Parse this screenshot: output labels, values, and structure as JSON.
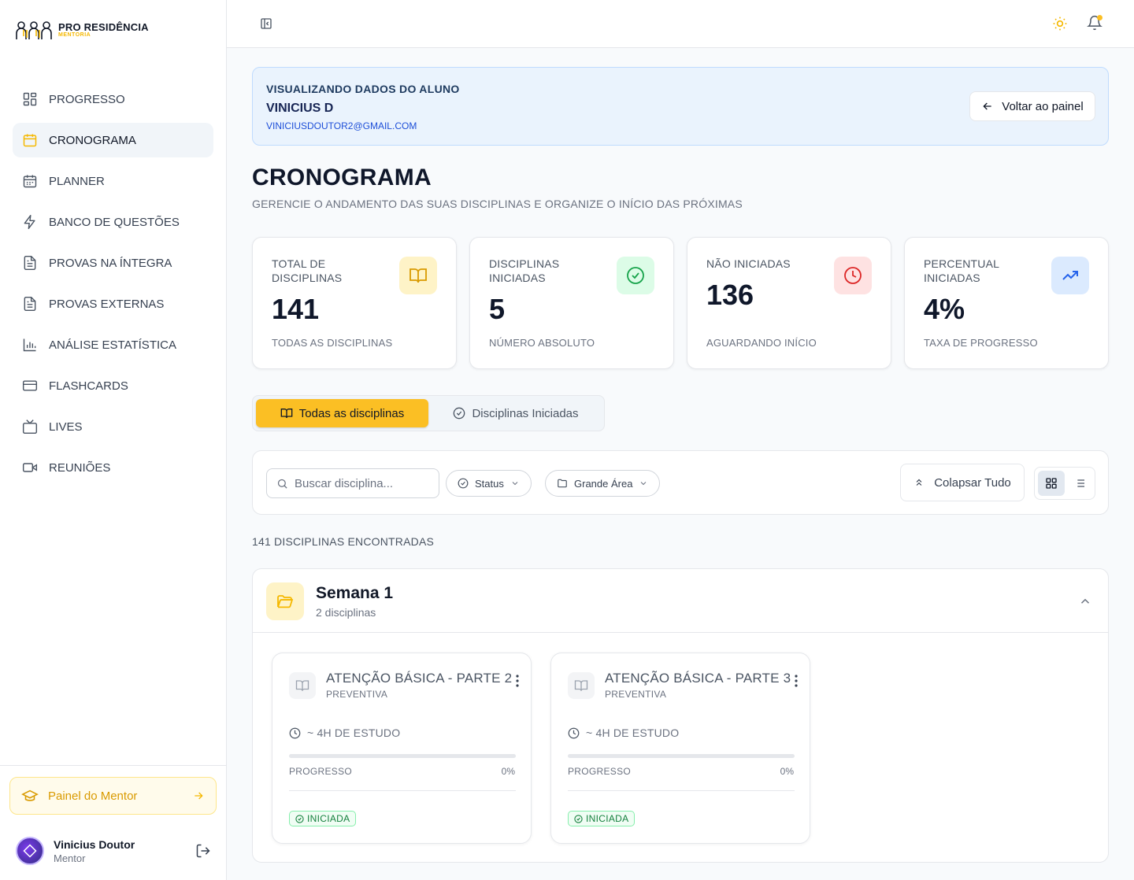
{
  "brand": {
    "name": "PRO RESIDÊNCIA",
    "sub": "MENTORIA"
  },
  "sidebar": {
    "items": [
      {
        "label": "PROGRESSO",
        "icon": "grid-icon"
      },
      {
        "label": "CRONOGRAMA",
        "icon": "calendar-icon",
        "active": true
      },
      {
        "label": "PLANNER",
        "icon": "calendar-grid-icon"
      },
      {
        "label": "BANCO DE QUESTÕES",
        "icon": "bolt-icon"
      },
      {
        "label": "PROVAS NA ÍNTEGRA",
        "icon": "document-icon"
      },
      {
        "label": "PROVAS EXTERNAS",
        "icon": "document-icon"
      },
      {
        "label": "ANÁLISE ESTATÍSTICA",
        "icon": "bar-chart-icon"
      },
      {
        "label": "FLASHCARDS",
        "icon": "card-icon"
      },
      {
        "label": "LIVES",
        "icon": "tv-icon"
      },
      {
        "label": "REUNIÕES",
        "icon": "video-icon"
      }
    ],
    "mentor_button": "Painel do Mentor",
    "user": {
      "name": "Vinicius Doutor",
      "role": "Mentor"
    }
  },
  "banner": {
    "label": "VISUALIZANDO DADOS DO ALUNO",
    "name": "VINICIUS D",
    "email": "VINICIUSDOUTOR2@GMAIL.COM",
    "back": "Voltar ao painel"
  },
  "page": {
    "title": "CRONOGRAMA",
    "subtitle": "GERENCIE O ANDAMENTO DAS SUAS DISCIPLINAS E ORGANIZE O INÍCIO DAS PRÓXIMAS"
  },
  "stats": [
    {
      "label": "TOTAL DE DISCIPLINAS",
      "value": "141",
      "foot": "TODAS AS DISCIPLINAS",
      "icon": "book-icon",
      "color": "#d99a00",
      "bg": "#fef3c7"
    },
    {
      "label": "DISCIPLINAS INICIADAS",
      "value": "5",
      "foot": "NÚMERO ABSOLUTO",
      "icon": "check-circle-icon",
      "color": "#16a34a",
      "bg": "#dcfce7"
    },
    {
      "label": "NÃO INICIADAS",
      "value": "136",
      "foot": "AGUARDANDO INÍCIO",
      "icon": "clock-icon",
      "color": "#dc2626",
      "bg": "#fee2e2"
    },
    {
      "label": "PERCENTUAL INICIADAS",
      "value": "4%",
      "foot": "TAXA DE PROGRESSO",
      "icon": "trend-up-icon",
      "color": "#2563eb",
      "bg": "#dbeafe"
    }
  ],
  "tabs": {
    "all": "Todas as disciplinas",
    "started": "Disciplinas Iniciadas"
  },
  "filters": {
    "search_placeholder": "Buscar disciplina...",
    "status": "Status",
    "area": "Grande Área",
    "collapse": "Colapsar Tudo"
  },
  "found": "141 DISCIPLINAS ENCONTRADAS",
  "week": {
    "title": "Semana 1",
    "count": "2 disciplinas",
    "cards": [
      {
        "title": "ATENÇÃO BÁSICA - PARTE 2",
        "area": "PREVENTIVA",
        "hours": "~ 4H DE ESTUDO",
        "progress_label": "PROGRESSO",
        "progress": "0%",
        "progress_value": 0,
        "badge": "INICIADA"
      },
      {
        "title": "ATENÇÃO BÁSICA - PARTE 3",
        "area": "PREVENTIVA",
        "hours": "~ 4H DE ESTUDO",
        "progress_label": "PROGRESSO",
        "progress": "0%",
        "progress_value": 0,
        "badge": "INICIADA"
      }
    ]
  },
  "colors": {
    "accent": "#fbbf24",
    "brand": "#f5b800"
  }
}
